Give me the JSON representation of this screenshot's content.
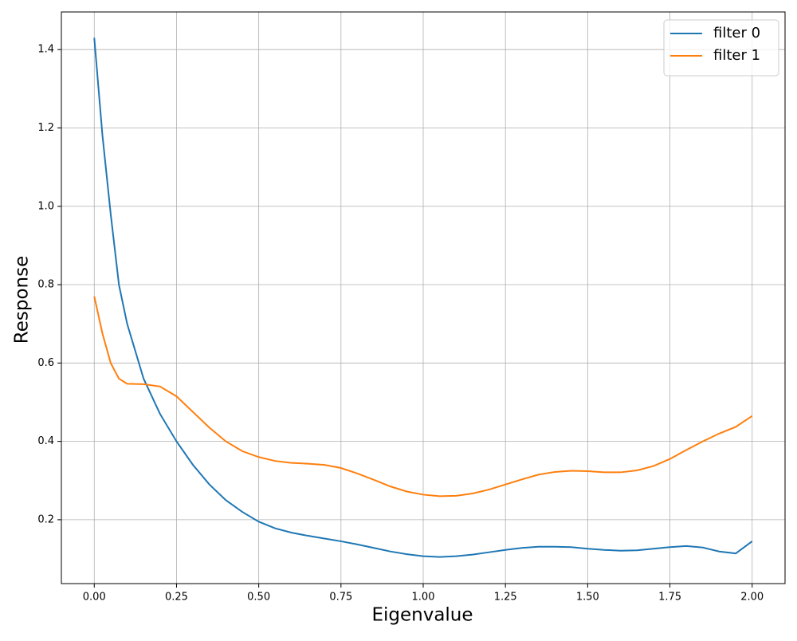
{
  "chart_data": {
    "type": "line",
    "xlabel": "Eigenvalue",
    "ylabel": "Response",
    "x": [
      0,
      0.025,
      0.05,
      0.075,
      0.1,
      0.15,
      0.2,
      0.25,
      0.3,
      0.35,
      0.4,
      0.45,
      0.5,
      0.55,
      0.6,
      0.65,
      0.7,
      0.75,
      0.8,
      0.85,
      0.9,
      0.95,
      1.0,
      1.05,
      1.1,
      1.15,
      1.2,
      1.25,
      1.3,
      1.35,
      1.4,
      1.45,
      1.5,
      1.55,
      1.6,
      1.65,
      1.7,
      1.75,
      1.8,
      1.85,
      1.9,
      1.95,
      2.0
    ],
    "series": [
      {
        "name": "filter 0",
        "color": "#1f77b4",
        "values": [
          1.43,
          1.18,
          0.98,
          0.8,
          0.7,
          0.56,
          0.47,
          0.4,
          0.34,
          0.29,
          0.25,
          0.22,
          0.195,
          0.178,
          0.167,
          0.159,
          0.152,
          0.145,
          0.137,
          0.128,
          0.119,
          0.112,
          0.107,
          0.105,
          0.107,
          0.111,
          0.117,
          0.123,
          0.128,
          0.131,
          0.131,
          0.13,
          0.126,
          0.123,
          0.121,
          0.122,
          0.126,
          0.13,
          0.133,
          0.129,
          0.119,
          0.114,
          0.145
        ]
      },
      {
        "name": "filter 1",
        "color": "#ff7f0e",
        "values": [
          0.77,
          0.675,
          0.6,
          0.56,
          0.547,
          0.546,
          0.54,
          0.515,
          0.475,
          0.435,
          0.4,
          0.375,
          0.36,
          0.35,
          0.345,
          0.343,
          0.34,
          0.332,
          0.318,
          0.302,
          0.285,
          0.272,
          0.264,
          0.26,
          0.261,
          0.267,
          0.277,
          0.29,
          0.303,
          0.315,
          0.322,
          0.325,
          0.324,
          0.321,
          0.321,
          0.326,
          0.337,
          0.355,
          0.378,
          0.4,
          0.42,
          0.437,
          0.465
        ]
      }
    ],
    "xlim": [
      -0.1,
      2.1
    ],
    "ylim": [
      0.037,
      1.496
    ],
    "xticks": [
      {
        "value": 0,
        "label": "0.00"
      },
      {
        "value": 0.25,
        "label": "0.25"
      },
      {
        "value": 0.5,
        "label": "0.50"
      },
      {
        "value": 0.75,
        "label": "0.75"
      },
      {
        "value": 1,
        "label": "1.00"
      },
      {
        "value": 1.25,
        "label": "1.25"
      },
      {
        "value": 1.5,
        "label": "1.50"
      },
      {
        "value": 1.75,
        "label": "1.75"
      },
      {
        "value": 2,
        "label": "2.00"
      }
    ],
    "yticks": [
      0.2,
      0.4,
      0.6,
      0.8,
      {
        "value": 1,
        "label": "1.0"
      },
      1.2,
      1.4
    ],
    "grid": true,
    "legend": "upper right"
  }
}
